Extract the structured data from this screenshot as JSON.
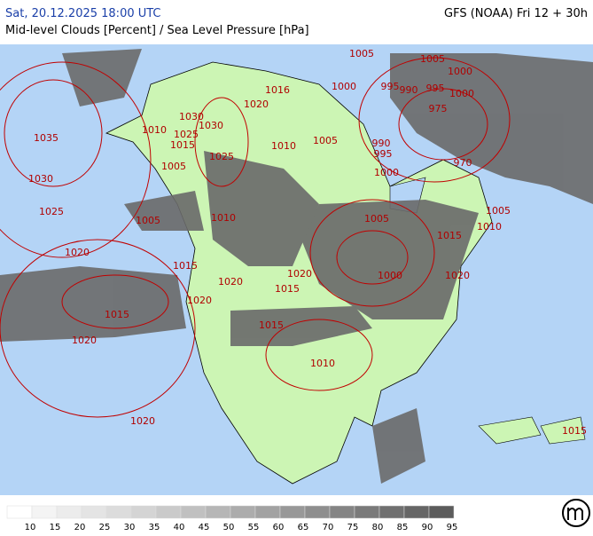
{
  "header": {
    "left_top": "Sat, 20.12.2025 18:00 UTC",
    "left_bottom": "Mid-level Clouds [Percent] / Sea Level Pressure [hPa]",
    "right_top": "GFS (NOAA) Fri 12 + 30h"
  },
  "map": {
    "isobar_labels": [
      1005,
      1005,
      1000,
      1016,
      1000,
      995,
      990,
      995,
      1000,
      1020,
      975,
      1035,
      1030,
      1010,
      1030,
      1025,
      1015,
      1010,
      1005,
      990,
      995,
      1025,
      1005,
      970,
      1030,
      1000,
      1025,
      1005,
      1010,
      1005,
      1005,
      1010,
      1015,
      1020,
      1015,
      1020,
      1000,
      1020,
      1020,
      1015,
      1020,
      1015,
      1015,
      1020,
      1010,
      1020,
      1015
    ]
  },
  "legend": {
    "labels": [
      10,
      15,
      20,
      25,
      30,
      35,
      40,
      45,
      50,
      55,
      60,
      65,
      70,
      75,
      80,
      85,
      90,
      95
    ],
    "colors": [
      "#ffffff",
      "#f4f4f4",
      "#ececec",
      "#e4e4e4",
      "#dcdcdc",
      "#d4d4d4",
      "#cacaca",
      "#c0c0c0",
      "#b6b6b6",
      "#acacac",
      "#a2a2a2",
      "#989898",
      "#8e8e8e",
      "#848484",
      "#7a7a7a",
      "#707070",
      "#666666",
      "#5c5c5c"
    ]
  }
}
